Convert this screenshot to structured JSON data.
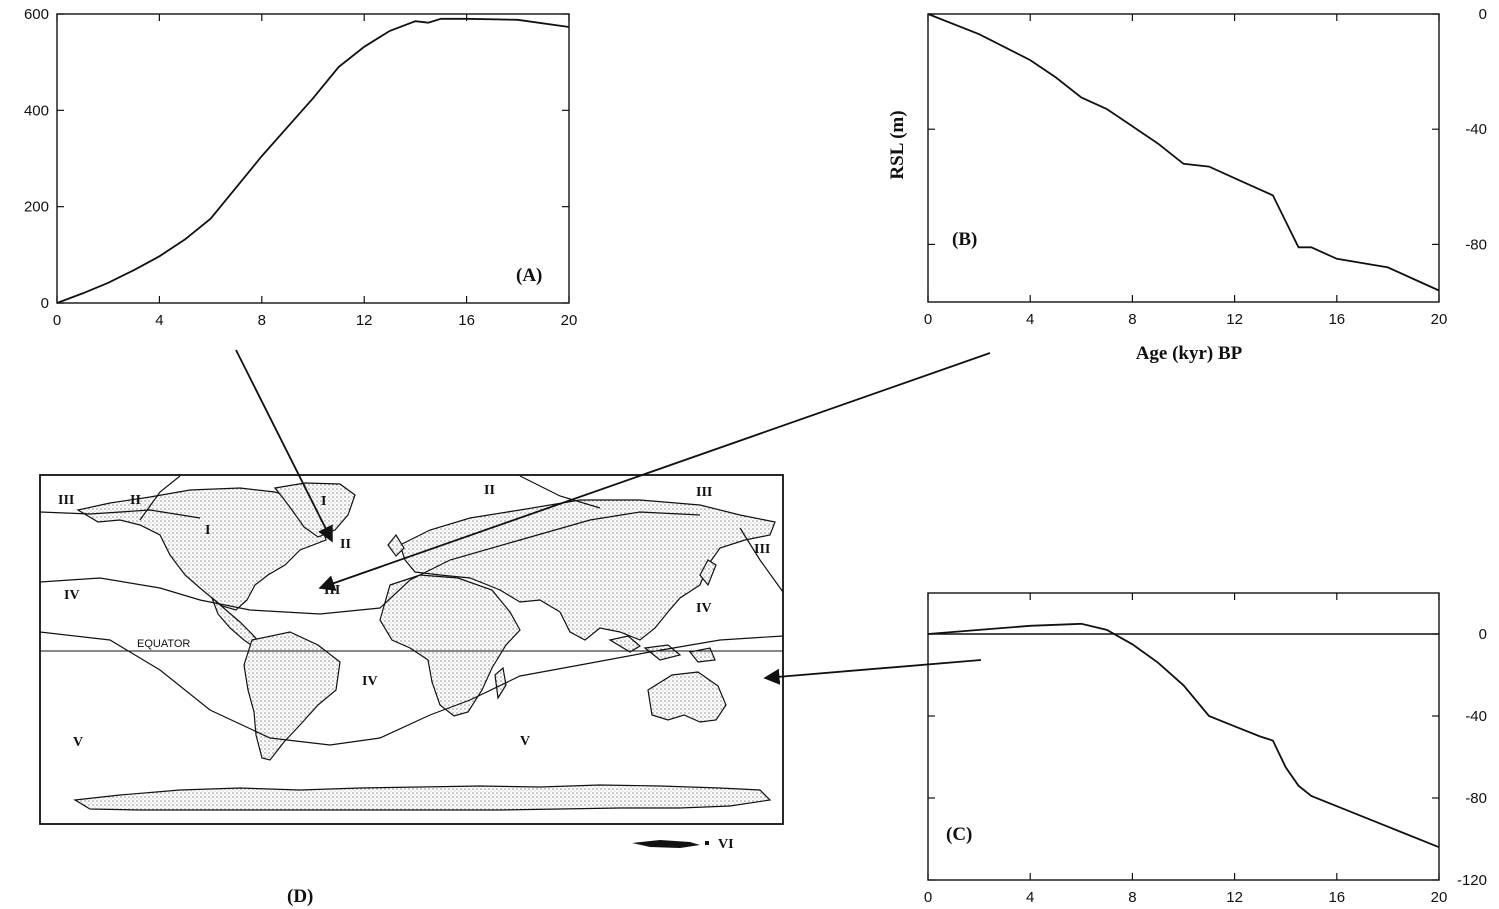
{
  "chart_data": [
    {
      "type": "line",
      "panel_label": "(A)",
      "x": [
        0,
        1,
        2,
        3,
        4,
        5,
        6,
        7,
        8,
        9,
        10,
        11,
        12,
        13,
        14,
        14.5,
        15,
        16,
        18,
        20
      ],
      "y": [
        0,
        20,
        42,
        68,
        97,
        132,
        175,
        240,
        305,
        365,
        425,
        490,
        532,
        565,
        585,
        582,
        590,
        590,
        588,
        573
      ],
      "xlim": [
        0,
        20
      ],
      "ylim": [
        0,
        600
      ],
      "xticks": [
        "0",
        "4",
        "8",
        "12",
        "16",
        "20"
      ],
      "yticks": [
        "0",
        "200",
        "400",
        "600"
      ],
      "xlabel": "",
      "ylabel": ""
    },
    {
      "type": "line",
      "panel_label": "(B)",
      "x": [
        0,
        2,
        4,
        5,
        6,
        7,
        8,
        9,
        10,
        11,
        12,
        13,
        13.5,
        14,
        14.5,
        15,
        16,
        18,
        19,
        20
      ],
      "y": [
        0,
        -7,
        -16,
        -22,
        -29,
        -33,
        -39,
        -45,
        -52,
        -53,
        -57,
        -61,
        -63,
        -72,
        -81,
        -81,
        -85,
        -88,
        -92,
        -96
      ],
      "xlim": [
        0,
        20
      ],
      "ylim": [
        -100,
        0
      ],
      "xticks": [
        "0",
        "4",
        "8",
        "12",
        "16",
        "20"
      ],
      "yticks": [
        "0",
        "-40",
        "-80"
      ],
      "xlabel": "Age (kyr) BP",
      "ylabel": "RSL (m)"
    },
    {
      "type": "line",
      "panel_label": "(C)",
      "x": [
        0,
        2,
        4,
        6,
        7,
        8,
        9,
        10,
        11,
        12,
        13,
        13.5,
        14,
        14.5,
        15,
        16,
        18,
        20
      ],
      "y": [
        0,
        2,
        4,
        5,
        2,
        -5,
        -14,
        -25,
        -40,
        -45,
        -50,
        -52,
        -65,
        -74,
        -79,
        -84,
        -94,
        -104
      ],
      "reference_line": 0,
      "xlim": [
        0,
        20
      ],
      "ylim": [
        -120,
        20
      ],
      "xticks": [
        "0",
        "4",
        "8",
        "12",
        "16",
        "20"
      ],
      "yticks": [
        "0",
        "-40",
        "-80",
        "-120"
      ],
      "xlabel": "",
      "ylabel": ""
    }
  ],
  "map": {
    "panel_label": "(D)",
    "equator_label": "EQUATOR",
    "zone_labels": [
      "I",
      "I",
      "II",
      "II",
      "II",
      "III",
      "III",
      "III",
      "III",
      "IV",
      "IV",
      "IV",
      "V",
      "V",
      "VI"
    ]
  },
  "colors": {
    "ink": "#111111",
    "background": "#ffffff",
    "land_stipple": "#bdbdbd"
  }
}
